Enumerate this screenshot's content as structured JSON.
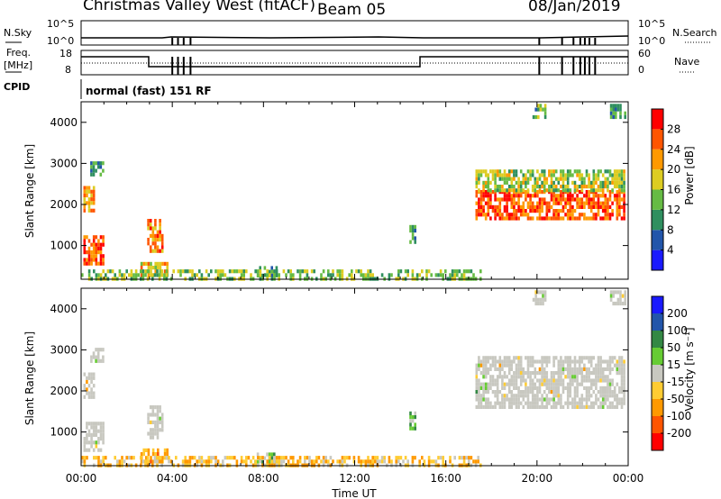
{
  "header": {
    "station": "Christmas Valley West (fitACF)",
    "beam": "Beam 05",
    "date": "08/Jan/2019"
  },
  "top_panels": {
    "nsky": {
      "label": "N.Sky",
      "tick_top": "10^5",
      "tick_bottom": "10^0"
    },
    "nsearch": {
      "label": "N.Search",
      "tick_top": "10^5",
      "tick_bottom": "10^0"
    },
    "freq": {
      "label_1": "Freq.",
      "label_2": "[MHz]",
      "tick_top": "18",
      "tick_bottom": "8"
    },
    "nave": {
      "label": "Nave",
      "tick_top": "60",
      "tick_bottom": "0"
    },
    "cpid": {
      "label": "CPID",
      "value": "normal (fast) 151 RF"
    }
  },
  "colors": {
    "power": [
      "#1a1aff",
      "#2255aa",
      "#2f8f5f",
      "#66bb44",
      "#ddcc22",
      "#ff9900",
      "#ff5500",
      "#ff0000"
    ],
    "velocity": [
      "#ff0000",
      "#ff5500",
      "#ff9900",
      "#ffcc33",
      "#c8c8c0",
      "#66cc33",
      "#338844",
      "#2255aa",
      "#1a1aff"
    ],
    "ground_scatter": "#c8c8c0"
  },
  "chart_data": [
    {
      "type": "heatmap",
      "name": "power",
      "xlabel": "",
      "ylabel": "Slant Range [km]",
      "x_ticks": [
        "00:00",
        "04:00",
        "08:00",
        "12:00",
        "16:00",
        "20:00",
        "00:00"
      ],
      "x_range_hours": [
        0,
        24
      ],
      "y_ticks": [
        1000,
        2000,
        3000,
        4000
      ],
      "y_range_km": [
        180,
        4500
      ],
      "colorbar": {
        "label": "Power [dB]",
        "ticks": [
          4,
          8,
          12,
          16,
          20,
          24,
          28
        ],
        "range": [
          0,
          32
        ]
      },
      "regions": [
        {
          "t0": 0.1,
          "t1": 1.0,
          "r0": 600,
          "r1": 1250,
          "value": 26
        },
        {
          "t0": 0.1,
          "t1": 0.6,
          "r0": 1850,
          "r1": 2450,
          "value": 22
        },
        {
          "t0": 0.4,
          "t1": 1.0,
          "r0": 2750,
          "r1": 3050,
          "value": 10
        },
        {
          "t0": 2.9,
          "t1": 3.6,
          "r0": 850,
          "r1": 1650,
          "value": 24
        },
        {
          "t0": 2.6,
          "t1": 3.8,
          "r0": 250,
          "r1": 600,
          "value": 20
        },
        {
          "t0": 7.6,
          "t1": 8.6,
          "r0": 250,
          "r1": 500,
          "value": 12
        },
        {
          "t0": 14.4,
          "t1": 14.7,
          "r0": 1100,
          "r1": 1500,
          "value": 10
        },
        {
          "t0": 17.3,
          "t1": 23.8,
          "r0": 1650,
          "r1": 2350,
          "value": 26
        },
        {
          "t0": 17.3,
          "t1": 23.8,
          "r0": 2350,
          "r1": 2850,
          "value": 16
        },
        {
          "t0": 19.8,
          "t1": 20.4,
          "r0": 4100,
          "r1": 4450,
          "value": 12
        },
        {
          "t0": 23.2,
          "t1": 23.9,
          "r0": 4150,
          "r1": 4450,
          "value": 10
        },
        {
          "t0": 0.0,
          "t1": 17.5,
          "r0": 180,
          "r1": 420,
          "value": 14
        }
      ]
    },
    {
      "type": "heatmap",
      "name": "velocity",
      "xlabel": "Time UT",
      "ylabel": "Slant Range [km]",
      "x_ticks": [
        "00:00",
        "04:00",
        "08:00",
        "12:00",
        "16:00",
        "20:00",
        "00:00"
      ],
      "x_range_hours": [
        0,
        24
      ],
      "y_ticks": [
        1000,
        2000,
        3000,
        4000
      ],
      "y_range_km": [
        180,
        4500
      ],
      "colorbar": {
        "label": "Velocity [m s⁻¹]",
        "ticks": [
          200,
          100,
          50,
          15,
          -15,
          -50,
          -100,
          -200
        ]
      },
      "regions": [
        {
          "t0": 0.1,
          "t1": 1.0,
          "r0": 600,
          "r1": 1250,
          "value": 0,
          "gs": true
        },
        {
          "t0": 0.1,
          "t1": 0.6,
          "r0": 1850,
          "r1": 2450,
          "value": 0,
          "gs": true
        },
        {
          "t0": 0.4,
          "t1": 1.0,
          "r0": 2750,
          "r1": 3050,
          "value": 0,
          "gs": true
        },
        {
          "t0": 2.9,
          "t1": 3.6,
          "r0": 850,
          "r1": 1650,
          "value": 0,
          "gs": true
        },
        {
          "t0": 2.6,
          "t1": 3.8,
          "r0": 250,
          "r1": 600,
          "value": -60,
          "gs": false
        },
        {
          "t0": 7.6,
          "t1": 8.6,
          "r0": 250,
          "r1": 500,
          "value": 30,
          "gs": false
        },
        {
          "t0": 14.4,
          "t1": 14.7,
          "r0": 1100,
          "r1": 1500,
          "value": 40,
          "gs": false
        },
        {
          "t0": 17.3,
          "t1": 23.8,
          "r0": 1650,
          "r1": 2850,
          "value": 0,
          "gs": true
        },
        {
          "t0": 19.8,
          "t1": 20.4,
          "r0": 4100,
          "r1": 4450,
          "value": 0,
          "gs": true
        },
        {
          "t0": 23.2,
          "t1": 23.9,
          "r0": 4150,
          "r1": 4450,
          "value": 0,
          "gs": true
        },
        {
          "t0": 0.0,
          "t1": 17.5,
          "r0": 180,
          "r1": 420,
          "value": -40,
          "gs": false
        }
      ]
    }
  ]
}
